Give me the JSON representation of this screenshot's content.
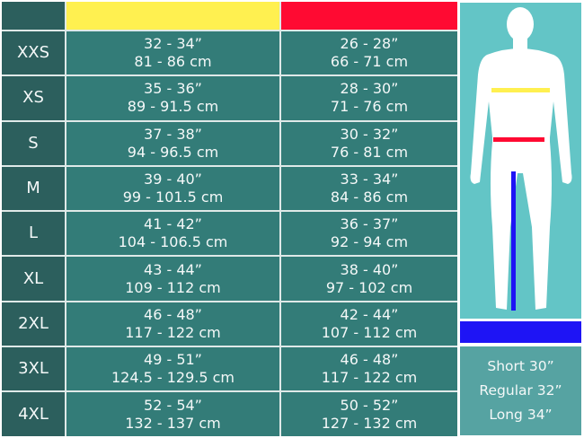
{
  "colors": {
    "chest": "#fff050",
    "waist": "#ff0a32",
    "inseam": "#1e14f5"
  },
  "rows": [
    {
      "size": "XXS",
      "chest_in": "32 - 34”",
      "chest_cm": "81 - 86 cm",
      "waist_in": "26 - 28”",
      "waist_cm": "66 - 71 cm"
    },
    {
      "size": "XS",
      "chest_in": "35 - 36”",
      "chest_cm": "89 - 91.5 cm",
      "waist_in": "28 - 30”",
      "waist_cm": "71 - 76 cm"
    },
    {
      "size": "S",
      "chest_in": "37 - 38”",
      "chest_cm": "94 - 96.5 cm",
      "waist_in": "30 - 32”",
      "waist_cm": "76 - 81 cm"
    },
    {
      "size": "M",
      "chest_in": "39 - 40”",
      "chest_cm": "99 - 101.5 cm",
      "waist_in": "33 - 34”",
      "waist_cm": "84 - 86 cm"
    },
    {
      "size": "L",
      "chest_in": "41 - 42”",
      "chest_cm": "104 - 106.5 cm",
      "waist_in": "36 - 37”",
      "waist_cm": "92 - 94 cm"
    },
    {
      "size": "XL",
      "chest_in": "43 - 44”",
      "chest_cm": "109 - 112 cm",
      "waist_in": "38 - 40”",
      "waist_cm": "97 - 102 cm"
    },
    {
      "size": "2XL",
      "chest_in": "46 - 48”",
      "chest_cm": "117 - 122 cm",
      "waist_in": "42 - 44”",
      "waist_cm": "107 - 112 cm"
    },
    {
      "size": "3XL",
      "chest_in": "49 - 51”",
      "chest_cm": "124.5 - 129.5 cm",
      "waist_in": "46 - 48”",
      "waist_cm": "117 - 122 cm"
    },
    {
      "size": "4XL",
      "chest_in": "52 - 54”",
      "chest_cm": "132 - 137 cm",
      "waist_in": "50 - 52”",
      "waist_cm": "127 - 132 cm"
    }
  ],
  "inseam": [
    "Short 30”",
    "Regular 32”",
    "Long 34”"
  ]
}
